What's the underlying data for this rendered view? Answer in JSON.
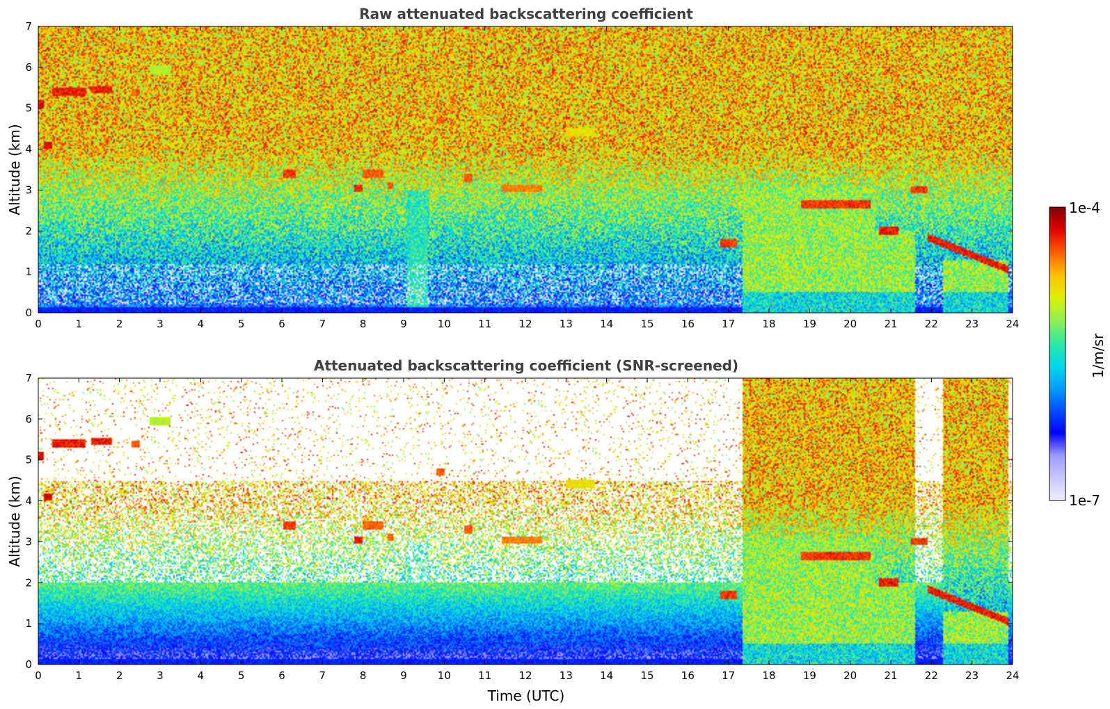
{
  "chart_data": [
    {
      "type": "heatmap",
      "title": "Raw attenuated backscattering coefficient",
      "xlabel": "",
      "ylabel": "Altitude (km)",
      "xlim": [
        0,
        24
      ],
      "ylim": [
        0,
        7
      ],
      "xticks": [
        "0",
        "1",
        "2",
        "3",
        "4",
        "5",
        "6",
        "7",
        "8",
        "9",
        "10",
        "11",
        "12",
        "13",
        "14",
        "15",
        "16",
        "17",
        "18",
        "19",
        "20",
        "21",
        "22",
        "23",
        "24"
      ],
      "yticks": [
        "0",
        "1",
        "2",
        "3",
        "4",
        "5",
        "6",
        "7"
      ],
      "screened": false
    },
    {
      "type": "heatmap",
      "title": "Attenuated backscattering coefficient (SNR-screened)",
      "xlabel": "Time (UTC)",
      "ylabel": "Altitude (km)",
      "xlim": [
        0,
        24
      ],
      "ylim": [
        0,
        7
      ],
      "xticks": [
        "0",
        "1",
        "2",
        "3",
        "4",
        "5",
        "6",
        "7",
        "8",
        "9",
        "10",
        "11",
        "12",
        "13",
        "14",
        "15",
        "16",
        "17",
        "18",
        "19",
        "20",
        "21",
        "22",
        "23",
        "24"
      ],
      "yticks": [
        "0",
        "1",
        "2",
        "3",
        "4",
        "5",
        "6",
        "7"
      ],
      "screened": true
    }
  ],
  "colorbar": {
    "label": "1/m/sr",
    "max_label": "1e-4",
    "min_label": "1e-7",
    "scale": "log",
    "colors": [
      "#f0f0ff",
      "#c8c8ff",
      "#9a9aff",
      "#0000ff",
      "#0050ff",
      "#00a0ff",
      "#00d8e8",
      "#30e8a0",
      "#90f050",
      "#e0f000",
      "#ffc000",
      "#ff6000",
      "#e00000",
      "#800000"
    ]
  },
  "features": {
    "clouds": [
      {
        "t0": 0.0,
        "t1": 0.15,
        "z": 5.1,
        "level": 0.92
      },
      {
        "t0": 0.35,
        "t1": 1.15,
        "z": 5.4,
        "level": 0.9
      },
      {
        "t0": 1.3,
        "t1": 1.8,
        "z": 5.45,
        "level": 0.9
      },
      {
        "t0": 2.3,
        "t1": 2.5,
        "z": 5.38,
        "level": 0.85
      },
      {
        "t0": 0.15,
        "t1": 0.35,
        "z": 4.1,
        "level": 0.92
      },
      {
        "t0": 2.75,
        "t1": 3.25,
        "z": 5.95,
        "level": 0.65
      },
      {
        "t0": 6.05,
        "t1": 6.35,
        "z": 3.4,
        "level": 0.88
      },
      {
        "t0": 7.8,
        "t1": 8.0,
        "z": 3.03,
        "level": 0.9
      },
      {
        "t0": 8.0,
        "t1": 8.5,
        "z": 3.4,
        "level": 0.85
      },
      {
        "t0": 8.6,
        "t1": 8.75,
        "z": 3.1,
        "level": 0.85
      },
      {
        "t0": 9.8,
        "t1": 10.0,
        "z": 4.7,
        "level": 0.85
      },
      {
        "t0": 10.5,
        "t1": 10.7,
        "z": 3.3,
        "level": 0.85
      },
      {
        "t0": 11.4,
        "t1": 12.4,
        "z": 3.05,
        "level": 0.82
      },
      {
        "t0": 13.0,
        "t1": 13.7,
        "z": 4.42,
        "level": 0.72
      },
      {
        "t0": 16.8,
        "t1": 17.2,
        "z": 1.7,
        "level": 0.88
      },
      {
        "t0": 18.8,
        "t1": 20.5,
        "z": 2.65,
        "level": 0.88
      },
      {
        "t0": 20.7,
        "t1": 21.2,
        "z": 2.0,
        "level": 0.9
      },
      {
        "t0": 21.5,
        "t1": 21.9,
        "z": 3.0,
        "level": 0.88
      },
      {
        "t0": 21.9,
        "t1": 23.9,
        "z": 1.5,
        "level": 0.9
      }
    ],
    "precipitation": [
      {
        "t0": 17.35,
        "t1": 20.6,
        "top": 3.1
      },
      {
        "t0": 20.6,
        "t1": 21.6,
        "top": 2.0
      },
      {
        "t0": 22.3,
        "t1": 23.9,
        "top": 1.3
      }
    ]
  }
}
